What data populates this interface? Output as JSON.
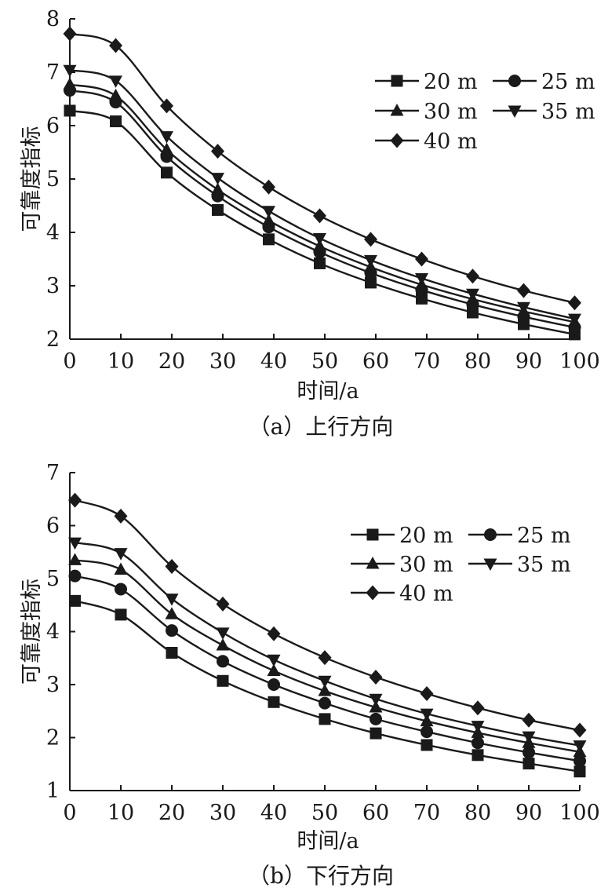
{
  "chart_data": [
    {
      "type": "line",
      "caption": "（a）上行方向",
      "xlabel": "时间/a",
      "ylabel": "可靠度指标",
      "xlim": [
        0,
        100
      ],
      "ylim": [
        2,
        8
      ],
      "xticks": [
        0,
        10,
        20,
        30,
        40,
        50,
        60,
        70,
        80,
        90,
        100
      ],
      "yticks": [
        2,
        3,
        4,
        5,
        6,
        7,
        8
      ],
      "x": [
        0,
        9,
        19,
        29,
        39,
        49,
        59,
        69,
        79,
        89,
        99
      ],
      "grid": false,
      "legend": "top-right",
      "series": [
        {
          "name": "20 m",
          "marker": "square",
          "values": [
            6.28,
            6.08,
            5.12,
            4.42,
            3.87,
            3.42,
            3.06,
            2.76,
            2.5,
            2.28,
            2.09
          ]
        },
        {
          "name": "25 m",
          "marker": "circle",
          "values": [
            6.66,
            6.44,
            5.42,
            4.68,
            4.1,
            3.63,
            3.24,
            2.92,
            2.65,
            2.42,
            2.22
          ]
        },
        {
          "name": "30 m",
          "marker": "triangle-up",
          "values": [
            6.77,
            6.56,
            5.55,
            4.8,
            4.22,
            3.74,
            3.35,
            3.02,
            2.75,
            2.52,
            2.32
          ]
        },
        {
          "name": "35 m",
          "marker": "triangle-down",
          "values": [
            7.04,
            6.84,
            5.8,
            5.02,
            4.4,
            3.89,
            3.48,
            3.14,
            2.85,
            2.6,
            2.38
          ]
        },
        {
          "name": "40 m",
          "marker": "diamond",
          "values": [
            7.72,
            7.5,
            6.37,
            5.52,
            4.85,
            4.31,
            3.87,
            3.5,
            3.18,
            2.91,
            2.68
          ]
        }
      ]
    },
    {
      "type": "line",
      "caption": "（b）下行方向",
      "xlabel": "时间/a",
      "ylabel": "可靠度指标",
      "xlim": [
        0,
        100
      ],
      "ylim": [
        1,
        7
      ],
      "xticks": [
        0,
        10,
        20,
        30,
        40,
        50,
        60,
        70,
        80,
        90,
        100
      ],
      "yticks": [
        1,
        2,
        3,
        4,
        5,
        6,
        7
      ],
      "x": [
        1,
        10,
        20,
        30,
        40,
        50,
        60,
        70,
        80,
        90,
        100
      ],
      "grid": false,
      "legend": "top-right",
      "series": [
        {
          "name": "20 m",
          "marker": "square",
          "values": [
            4.58,
            4.32,
            3.6,
            3.07,
            2.67,
            2.35,
            2.08,
            1.86,
            1.67,
            1.51,
            1.36
          ]
        },
        {
          "name": "25 m",
          "marker": "circle",
          "values": [
            5.05,
            4.8,
            4.02,
            3.44,
            3.0,
            2.65,
            2.35,
            2.11,
            1.9,
            1.72,
            1.56
          ]
        },
        {
          "name": "30 m",
          "marker": "triangle-up",
          "values": [
            5.35,
            5.17,
            4.33,
            3.74,
            3.26,
            2.88,
            2.57,
            2.31,
            2.09,
            1.9,
            1.73
          ]
        },
        {
          "name": "35 m",
          "marker": "triangle-down",
          "values": [
            5.68,
            5.48,
            4.62,
            3.98,
            3.47,
            3.07,
            2.73,
            2.45,
            2.22,
            2.02,
            1.85
          ]
        },
        {
          "name": "40 m",
          "marker": "diamond",
          "values": [
            6.48,
            6.18,
            5.23,
            4.52,
            3.96,
            3.51,
            3.14,
            2.83,
            2.56,
            2.33,
            2.14
          ]
        }
      ]
    }
  ]
}
